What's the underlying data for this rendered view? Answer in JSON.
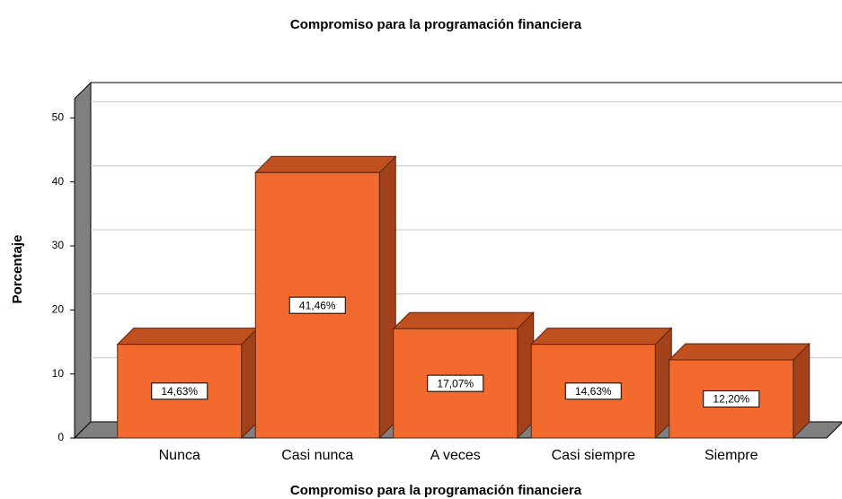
{
  "chart_data": {
    "type": "bar3d",
    "title": "Compromiso para la programación financiera",
    "x_label": "Compromiso para la programación financiera",
    "y_label": "Porcentaje",
    "categories": [
      "Nunca",
      "Casi nunca",
      "A veces",
      "Casi siempre",
      "Siempre"
    ],
    "values": [
      14.63,
      41.46,
      17.07,
      14.63,
      12.2
    ],
    "value_labels": [
      "14,63%",
      "41,46%",
      "17,07%",
      "14,63%",
      "12,20%"
    ],
    "color": "#f26a2e",
    "ylim": [
      0,
      53
    ],
    "yticks": [
      0,
      10,
      20,
      30,
      40,
      50
    ],
    "grid": true
  }
}
